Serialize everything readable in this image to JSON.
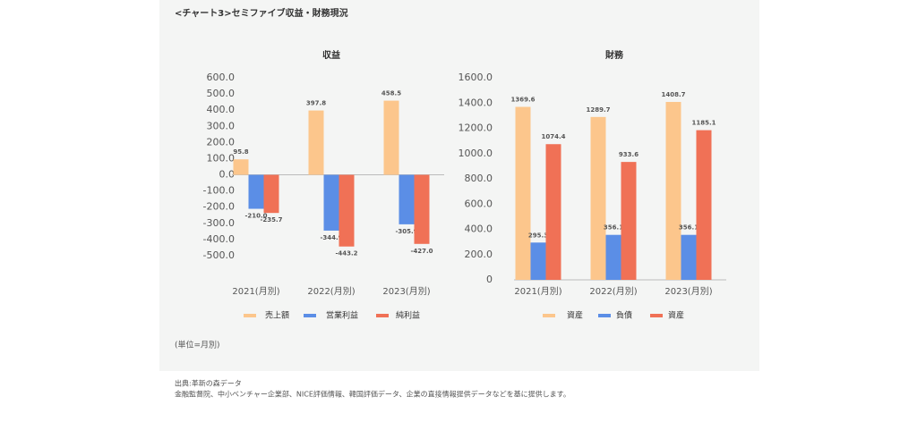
{
  "title": "<チャート3>セミファイブ収益・財務現況",
  "unit_note": "(単位=月別)",
  "source": [
    "出典:革新の森データ",
    "金融監督院、中小ベンチャー企業部、NICE評価情報、韓国評価データ、企業の直接情報提供データなどを基に提供します。"
  ],
  "chart_data": [
    {
      "type": "bar",
      "title": "収益",
      "categories": [
        "2021(月別)",
        "2022(月別)",
        "2023(月別)"
      ],
      "series": [
        {
          "name": "売上額",
          "color": "#fcc68c",
          "values": [
            95.8,
            397.8,
            458.5
          ],
          "value_labels": [
            "95.8",
            "397.8",
            "458.5"
          ]
        },
        {
          "name": "営業利益",
          "color": "#5b8ee6",
          "values": [
            -210.0,
            -344.9,
            -305.9
          ],
          "value_labels": [
            "-210.0",
            "-344.9",
            "-305.9"
          ]
        },
        {
          "name": "純利益",
          "color": "#f07156",
          "values": [
            -235.7,
            -443.2,
            -427.0
          ],
          "value_labels": [
            "-235.7",
            "-443.2",
            "-427.0"
          ]
        }
      ],
      "ylim": [
        -500,
        600
      ],
      "yticks": [
        {
          "value": 600,
          "label": "600.0"
        },
        {
          "value": 500,
          "label": "500.0"
        },
        {
          "value": 400,
          "label": "400.0"
        },
        {
          "value": 300,
          "label": "300.0"
        },
        {
          "value": 200,
          "label": "200.0"
        },
        {
          "value": 100,
          "label": "100.0"
        },
        {
          "value": 0,
          "label": "0.0"
        },
        {
          "value": -100,
          "label": "-100.0"
        },
        {
          "value": -200,
          "label": "-200.0"
        },
        {
          "value": -300,
          "label": "-300.0"
        },
        {
          "value": -400,
          "label": "-400.0"
        },
        {
          "value": -500,
          "label": "-500.0"
        }
      ]
    },
    {
      "type": "bar",
      "title": "財務",
      "categories": [
        "2021(月別)",
        "2022(月別)",
        "2023(月別)"
      ],
      "series": [
        {
          "name": "資産",
          "color": "#fcc68c",
          "values": [
            1369.6,
            1289.7,
            1408.7
          ]
        },
        {
          "name": "負債",
          "color": "#5b8ee6",
          "values": [
            295.3,
            356.1,
            356.1
          ]
        },
        {
          "name": "資産",
          "color": "#f07156",
          "values": [
            1074.4,
            933.6,
            1185.1
          ]
        }
      ],
      "ylim": [
        0,
        1600
      ],
      "yticks": [
        {
          "value": 1600,
          "label": "1600.0"
        },
        {
          "value": 1400,
          "label": "1400.0"
        },
        {
          "value": 1200,
          "label": "1200.0"
        },
        {
          "value": 1000,
          "label": "1000.0"
        },
        {
          "value": 800,
          "label": "800.0"
        },
        {
          "value": 600,
          "label": "600.0"
        },
        {
          "value": 400,
          "label": "400.0"
        },
        {
          "value": 200,
          "label": "200.0"
        },
        0
      ]
    }
  ]
}
